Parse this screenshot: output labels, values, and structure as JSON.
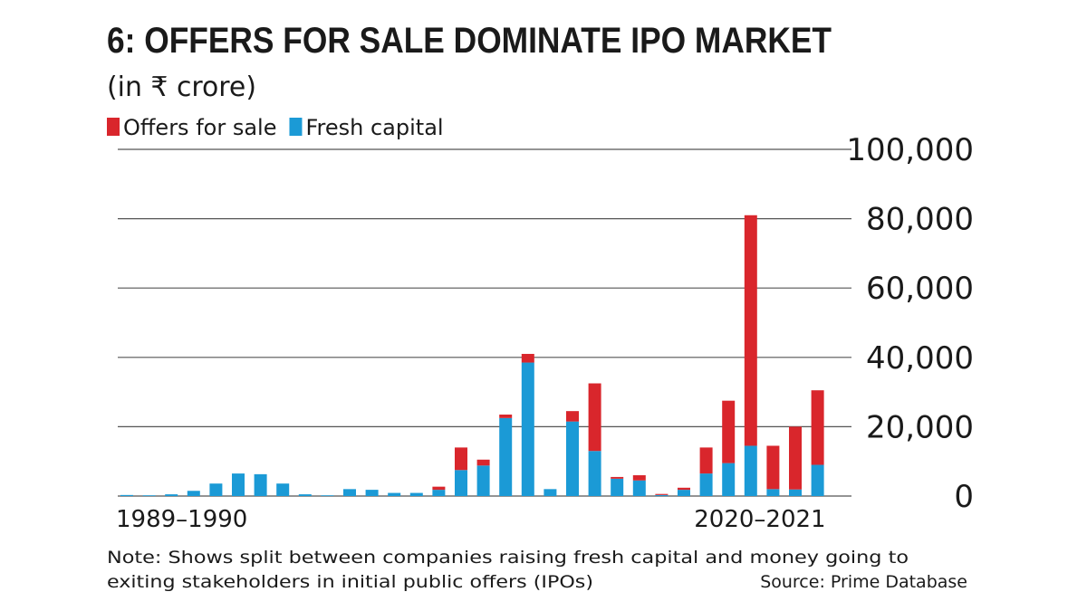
{
  "chart_data": {
    "type": "stacked_bar",
    "title": "6: OFFERS FOR SALE DOMINATE IPO MARKET",
    "subtitle": "(in ₹ crore)",
    "categories": [
      "1989–1990",
      null,
      null,
      null,
      null,
      null,
      null,
      null,
      null,
      null,
      null,
      null,
      null,
      null,
      null,
      null,
      null,
      null,
      null,
      null,
      null,
      null,
      null,
      null,
      null,
      null,
      null,
      null,
      null,
      null,
      null,
      "2020–2021"
    ],
    "series": [
      {
        "name": "Offers for sale",
        "color": "#d9262c",
        "values": [
          0,
          0,
          0,
          0,
          0,
          0,
          0,
          0,
          0,
          0,
          0,
          0,
          0,
          0,
          900,
          6500,
          1700,
          1000,
          2500,
          0,
          3000,
          19500,
          500,
          1500,
          300,
          600,
          7500,
          18000,
          66500,
          12500,
          18100,
          21500
        ]
      },
      {
        "name": "Fresh capital",
        "color": "#1b9ad6",
        "values": [
          300,
          200,
          500,
          1500,
          3600,
          6500,
          6300,
          3600,
          500,
          200,
          2000,
          1800,
          900,
          900,
          1800,
          7500,
          8800,
          22500,
          38500,
          2000,
          21500,
          13000,
          5000,
          4500,
          300,
          1800,
          6500,
          9500,
          14500,
          2000,
          1900,
          9000
        ]
      }
    ],
    "ylim": [
      0,
      100000
    ],
    "yticks": [
      0,
      {
        "value": 20000,
        "label": "20,000"
      },
      {
        "value": 40000,
        "label": "40,000"
      },
      {
        "value": 60000,
        "label": "60,000"
      },
      {
        "value": 80000,
        "label": "80,000"
      },
      {
        "value": 100000,
        "label": "100,000"
      }
    ],
    "grid": true,
    "legend": "top-left",
    "notes": [
      "Note: Shows split between companies raising fresh capital and money going to",
      "exiting stakeholders in initial public offers (IPOs)"
    ],
    "source": "Source: Prime Database"
  }
}
